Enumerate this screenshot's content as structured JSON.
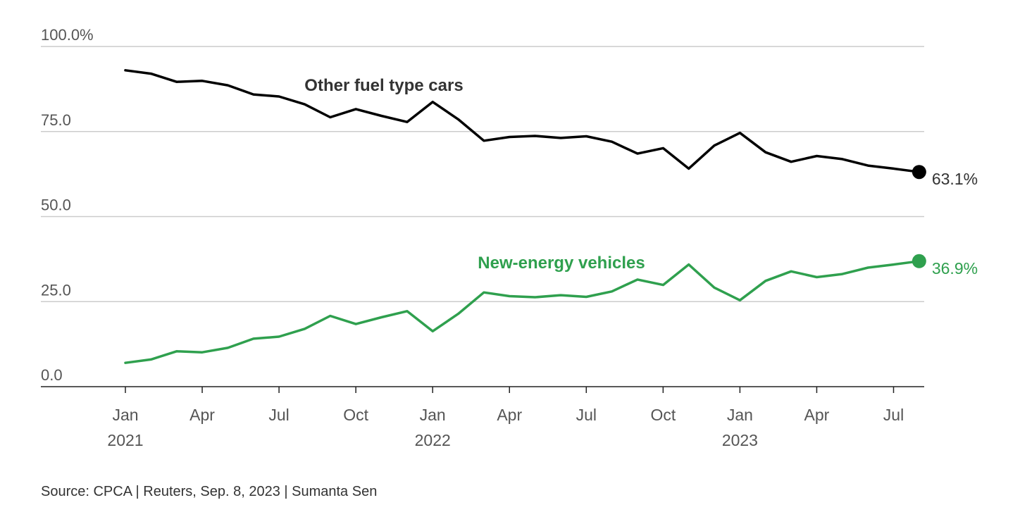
{
  "chart_data": {
    "type": "line",
    "x": [
      "2021-01",
      "2021-02",
      "2021-03",
      "2021-04",
      "2021-05",
      "2021-06",
      "2021-07",
      "2021-08",
      "2021-09",
      "2021-10",
      "2021-11",
      "2021-12",
      "2022-01",
      "2022-02",
      "2022-03",
      "2022-04",
      "2022-05",
      "2022-06",
      "2022-07",
      "2022-08",
      "2022-09",
      "2022-10",
      "2022-11",
      "2022-12",
      "2023-01",
      "2023-02",
      "2023-03",
      "2023-04",
      "2023-05",
      "2023-06",
      "2023-07",
      "2023-08"
    ],
    "x_ticks": [
      {
        "x": "2021-01",
        "label": "Jan",
        "year": "2021"
      },
      {
        "x": "2021-04",
        "label": "Apr",
        "year": ""
      },
      {
        "x": "2021-07",
        "label": "Jul",
        "year": ""
      },
      {
        "x": "2021-10",
        "label": "Oct",
        "year": ""
      },
      {
        "x": "2022-01",
        "label": "Jan",
        "year": "2022"
      },
      {
        "x": "2022-04",
        "label": "Apr",
        "year": ""
      },
      {
        "x": "2022-07",
        "label": "Jul",
        "year": ""
      },
      {
        "x": "2022-10",
        "label": "Oct",
        "year": ""
      },
      {
        "x": "2023-01",
        "label": "Jan",
        "year": "2023"
      },
      {
        "x": "2023-04",
        "label": "Apr",
        "year": ""
      },
      {
        "x": "2023-07",
        "label": "Jul",
        "year": ""
      }
    ],
    "y_ticks": [
      {
        "value": 0,
        "label": "0.0"
      },
      {
        "value": 25,
        "label": "25.0"
      },
      {
        "value": 50,
        "label": "50.0"
      },
      {
        "value": 75,
        "label": "75.0"
      },
      {
        "value": 100,
        "label": "100.0%"
      }
    ],
    "ylim": [
      0,
      100
    ],
    "grid": true,
    "series": [
      {
        "name": "Other fuel type cars",
        "color": "#000000",
        "end_label": "63.1%",
        "values": [
          93.0,
          92.0,
          89.6,
          89.9,
          88.6,
          85.9,
          85.3,
          83.0,
          79.2,
          81.6,
          79.6,
          77.8,
          83.7,
          78.6,
          72.3,
          73.4,
          73.7,
          73.1,
          73.6,
          72.0,
          68.5,
          70.1,
          64.1,
          70.9,
          74.6,
          68.9,
          66.1,
          67.8,
          66.9,
          65.0,
          64.1,
          63.1
        ]
      },
      {
        "name": "New-energy vehicles",
        "color": "#2fa04e",
        "end_label": "36.9%",
        "values": [
          7.0,
          8.0,
          10.4,
          10.1,
          11.4,
          14.1,
          14.7,
          17.0,
          20.8,
          18.4,
          20.4,
          22.2,
          16.3,
          21.4,
          27.7,
          26.6,
          26.3,
          26.9,
          26.4,
          28.0,
          31.5,
          29.9,
          35.9,
          29.1,
          25.4,
          31.1,
          33.9,
          32.2,
          33.1,
          35.0,
          35.9,
          36.9
        ]
      }
    ]
  },
  "footer": {
    "source": "Source: CPCA | Reuters, Sep. 8, 2023 | Sumanta Sen"
  }
}
